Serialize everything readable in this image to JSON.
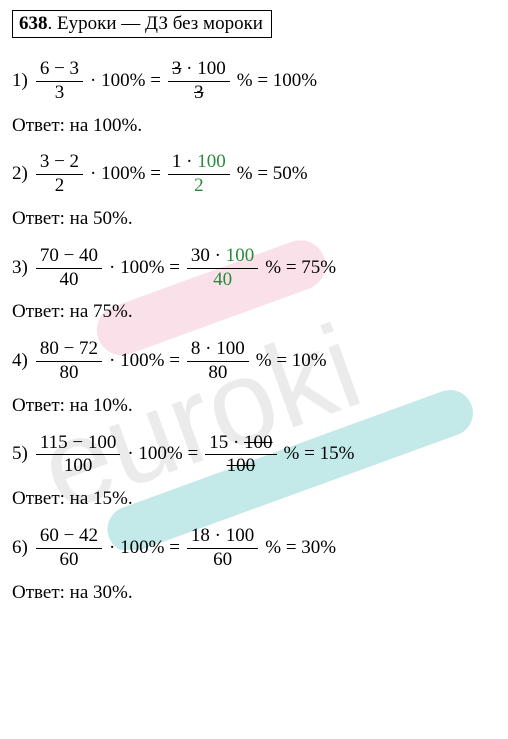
{
  "header": {
    "number": "638",
    "text": ". Еуроки  —  ДЗ без мороки"
  },
  "problems": [
    {
      "idx": "1)",
      "f1_top": "6 − 3",
      "f1_bot": "3",
      "mid": "· 100% =",
      "f2_top_a": "3",
      "f2_top_a_strike": true,
      "f2_top_dot": " · ",
      "f2_top_b": "100",
      "f2_top_b_strike": false,
      "f2_bot": "3",
      "f2_bot_strike": true,
      "f2_top_green": false,
      "f2_bot_green": false,
      "after": "% = 100%",
      "answer": "Ответ: на 100%."
    },
    {
      "idx": "2)",
      "f1_top": "3 − 2",
      "f1_bot": "2",
      "mid": "· 100% =",
      "f2_top_a": "1",
      "f2_top_a_strike": false,
      "f2_top_dot": " · ",
      "f2_top_b": "100",
      "f2_top_b_strike": false,
      "f2_bot": "2",
      "f2_bot_strike": false,
      "f2_top_green": true,
      "f2_bot_green": true,
      "after": "% = 50%",
      "answer": "Ответ: на 50%."
    },
    {
      "idx": "3)",
      "f1_top": "70 − 40",
      "f1_bot": "40",
      "mid": "· 100% =",
      "f2_top_a": "30",
      "f2_top_a_strike": false,
      "f2_top_dot": " · ",
      "f2_top_b": "100",
      "f2_top_b_strike": false,
      "f2_bot": "40",
      "f2_bot_strike": false,
      "f2_top_green": true,
      "f2_bot_green": true,
      "after": "% = 75%",
      "answer": "Ответ: на 75%."
    },
    {
      "idx": "4)",
      "f1_top": "80 − 72",
      "f1_bot": "80",
      "mid": "· 100% =",
      "f2_top_a": "8",
      "f2_top_a_strike": false,
      "f2_top_dot": " · ",
      "f2_top_b": "100",
      "f2_top_b_strike": false,
      "f2_bot": "80",
      "f2_bot_strike": false,
      "f2_top_green": false,
      "f2_bot_green": false,
      "after": "% = 10%",
      "answer": "Ответ: на 10%."
    },
    {
      "idx": "5)",
      "f1_top": "115 − 100",
      "f1_bot": "100",
      "mid": "· 100% =",
      "f2_top_a": "15",
      "f2_top_a_strike": false,
      "f2_top_dot": " · ",
      "f2_top_b": "100",
      "f2_top_b_strike": true,
      "f2_bot": "100",
      "f2_bot_strike": true,
      "f2_top_green": false,
      "f2_bot_green": false,
      "after": "% = 15%",
      "answer": "Ответ: на 15%."
    },
    {
      "idx": "6)",
      "f1_top": "60 − 42",
      "f1_bot": "60",
      "mid": "· 100% =",
      "f2_top_a": "18",
      "f2_top_a_strike": false,
      "f2_top_dot": " · ",
      "f2_top_b": "100",
      "f2_top_b_strike": false,
      "f2_bot": "60",
      "f2_bot_strike": false,
      "f2_top_green": false,
      "f2_bot_green": false,
      "after": "% = 30%",
      "answer": "Ответ: на  30%."
    }
  ],
  "watermark": {
    "text": "euroki",
    "font_family": "Arial, sans-serif",
    "font_size": 120,
    "fill": "#d9d9d9",
    "rotate": -20,
    "pink": {
      "stroke": "#f7c4d4",
      "width": 50
    },
    "teal": {
      "stroke": "#88d4d4",
      "width": 46
    }
  }
}
